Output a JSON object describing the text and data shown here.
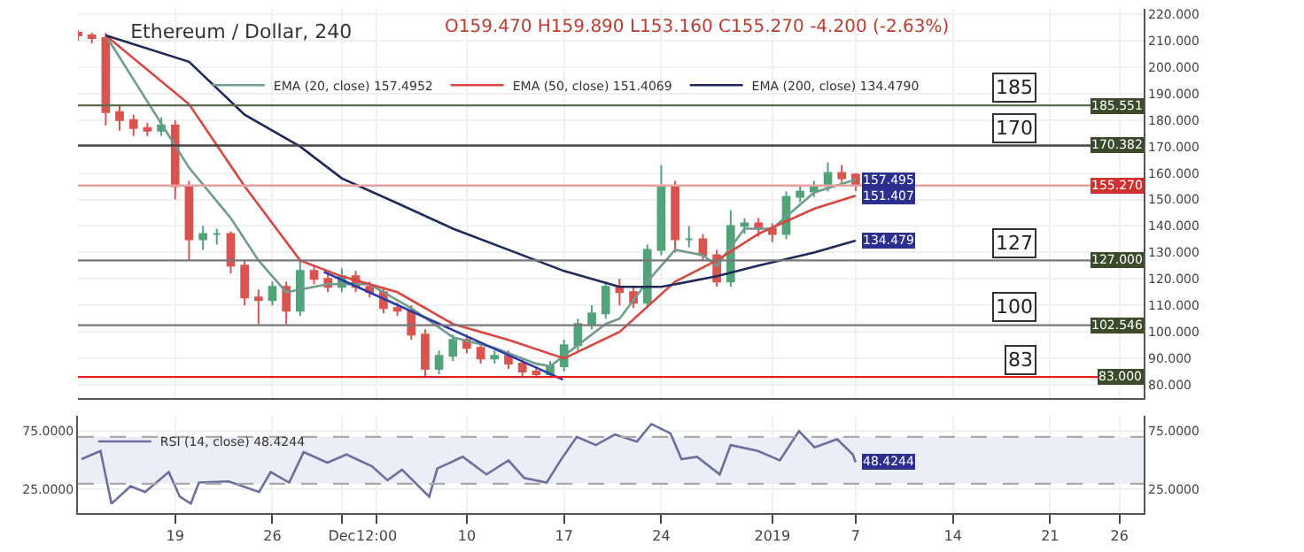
{
  "chart_data": [
    {
      "type": "candlestick",
      "title": "Ethereum / Dollar, 240",
      "subtitle": "O159.470 H159.890 L153.160 C155.270 -4.200 (-2.63%)",
      "x": [
        "2018-11-12",
        "2018-11-13",
        "2018-11-14",
        "2018-11-15",
        "2018-11-16",
        "2018-11-17",
        "2018-11-18",
        "2018-11-19",
        "2018-11-20",
        "2018-11-21",
        "2018-11-22",
        "2018-11-23",
        "2018-11-24",
        "2018-11-25",
        "2018-11-26",
        "2018-11-27",
        "2018-11-28",
        "2018-11-29",
        "2018-11-30",
        "2018-12-01",
        "2018-12-02",
        "2018-12-03",
        "2018-12-04",
        "2018-12-05",
        "2018-12-06",
        "2018-12-07",
        "2018-12-08",
        "2018-12-09",
        "2018-12-10",
        "2018-12-11",
        "2018-12-12",
        "2018-12-13",
        "2018-12-14",
        "2018-12-15",
        "2018-12-16",
        "2018-12-17",
        "2018-12-18",
        "2018-12-19",
        "2018-12-20",
        "2018-12-21",
        "2018-12-22",
        "2018-12-23",
        "2018-12-24",
        "2018-12-25",
        "2018-12-26",
        "2018-12-27",
        "2018-12-28",
        "2018-12-29",
        "2018-12-30",
        "2018-12-31",
        "2019-01-01",
        "2019-01-02",
        "2019-01-03",
        "2019-01-04",
        "2019-01-05",
        "2019-01-06",
        "2019-01-07"
      ],
      "ohlc": [
        [
          213,
          214,
          210,
          212
        ],
        [
          212,
          213,
          209,
          211
        ],
        [
          211,
          213,
          178,
          183
        ],
        [
          183,
          186,
          176,
          180
        ],
        [
          180,
          182,
          174,
          177
        ],
        [
          177,
          179,
          174,
          176
        ],
        [
          176,
          181,
          174,
          178
        ],
        [
          178,
          180,
          150,
          155
        ],
        [
          155,
          157,
          127,
          135
        ],
        [
          135,
          140,
          131,
          137
        ],
        [
          137,
          139,
          133,
          137
        ],
        [
          137,
          138,
          122,
          125
        ],
        [
          125,
          127,
          110,
          113
        ],
        [
          113,
          116,
          103,
          112
        ],
        [
          112,
          119,
          110,
          117
        ],
        [
          117,
          119,
          103,
          108
        ],
        [
          108,
          127,
          106,
          123
        ],
        [
          123,
          125,
          118,
          120
        ],
        [
          120,
          122,
          115,
          117
        ],
        [
          117,
          124,
          115,
          121
        ],
        [
          121,
          123,
          115,
          117
        ],
        [
          117,
          119,
          113,
          115
        ],
        [
          115,
          117,
          107,
          109
        ],
        [
          109,
          111,
          106,
          108
        ],
        [
          108,
          110,
          97,
          99
        ],
        [
          99,
          101,
          83,
          86
        ],
        [
          86,
          93,
          84,
          91
        ],
        [
          91,
          99,
          89,
          97
        ],
        [
          97,
          99,
          92,
          94
        ],
        [
          94,
          96,
          88,
          90
        ],
        [
          90,
          93,
          88,
          91
        ],
        [
          91,
          93,
          86,
          88
        ],
        [
          88,
          90,
          83,
          85
        ],
        [
          85,
          87,
          83,
          84
        ],
        [
          84,
          89,
          83,
          87
        ],
        [
          87,
          97,
          85,
          95
        ],
        [
          95,
          105,
          93,
          103
        ],
        [
          103,
          110,
          101,
          107
        ],
        [
          107,
          119,
          105,
          117
        ],
        [
          117,
          120,
          110,
          115
        ],
        [
          115,
          117,
          109,
          111
        ],
        [
          111,
          133,
          109,
          131
        ],
        [
          131,
          163,
          129,
          155
        ],
        [
          155,
          157,
          130,
          135
        ],
        [
          135,
          140,
          132,
          135
        ],
        [
          135,
          137,
          127,
          129
        ],
        [
          129,
          131,
          117,
          119
        ],
        [
          119,
          146,
          117,
          140
        ],
        [
          140,
          143,
          137,
          141
        ],
        [
          141,
          143,
          136,
          139
        ],
        [
          139,
          141,
          134,
          137
        ],
        [
          137,
          153,
          135,
          151
        ],
        [
          151,
          155,
          149,
          153
        ],
        [
          153,
          157,
          151,
          155
        ],
        [
          155,
          164,
          153,
          160
        ],
        [
          160,
          163,
          156,
          158
        ],
        [
          159.47,
          159.89,
          153.16,
          155.27
        ]
      ],
      "colors": [
        "#d9534f",
        "#d9534f",
        "#d9534f",
        "#d9534f",
        "#d9534f",
        "#d9534f",
        "#53a37a",
        "#d9534f",
        "#d9534f",
        "#53a37a",
        "#53a37a",
        "#d9534f",
        "#d9534f",
        "#d9534f",
        "#53a37a",
        "#d9534f",
        "#53a37a",
        "#d9534f",
        "#d9534f",
        "#53a37a",
        "#d9534f",
        "#d9534f",
        "#d9534f",
        "#d9534f",
        "#d9534f",
        "#d9534f",
        "#53a37a",
        "#53a37a",
        "#d9534f",
        "#d9534f",
        "#53a37a",
        "#d9534f",
        "#d9534f",
        "#d9534f",
        "#53a37a",
        "#53a37a",
        "#53a37a",
        "#53a37a",
        "#53a37a",
        "#d9534f",
        "#d9534f",
        "#53a37a",
        "#53a37a",
        "#d9534f",
        "#53a37a",
        "#d9534f",
        "#d9534f",
        "#53a37a",
        "#53a37a",
        "#d9534f",
        "#d9534f",
        "#53a37a",
        "#53a37a",
        "#53a37a",
        "#53a37a",
        "#d9534f",
        "#d9534f"
      ],
      "series": [
        {
          "type": "line",
          "name": "EMA (20, close) 157.4952",
          "color": "#6f9c8c",
          "x": [
            "2018-11-14",
            "2018-11-20",
            "2018-11-23",
            "2018-11-25",
            "2018-11-27",
            "2018-11-30",
            "2018-12-03",
            "2018-12-06",
            "2018-12-09",
            "2018-12-12",
            "2018-12-15",
            "2018-12-16",
            "2018-12-20",
            "2018-12-21",
            "2018-12-23",
            "2018-12-25",
            "2018-12-27",
            "2018-12-28",
            "2018-12-30",
            "2019-01-01",
            "2019-01-04",
            "2019-01-07"
          ],
          "values": [
            212,
            162,
            143,
            127,
            115,
            118,
            118,
            109,
            98,
            94,
            88,
            87,
            103,
            105,
            119,
            131,
            129,
            125,
            139,
            139,
            152.6,
            157.495
          ]
        },
        {
          "type": "line",
          "name": "EMA (50, close) 151.4069",
          "color": "#d9453f",
          "x": [
            "2018-11-14",
            "2018-11-20",
            "2018-11-24",
            "2018-11-28",
            "2018-12-01",
            "2018-12-05",
            "2018-12-09",
            "2018-12-13",
            "2018-12-17",
            "2018-12-21",
            "2018-12-25",
            "2018-12-28",
            "2018-12-31",
            "2019-01-04",
            "2019-01-07"
          ],
          "values": [
            212,
            186,
            155,
            127,
            121,
            115,
            103,
            97,
            90,
            100,
            119,
            127,
            137,
            146.5,
            151.407
          ]
        },
        {
          "type": "line",
          "name": "EMA (200, close) 134.4790",
          "color": "#1f2a5a",
          "x": [
            "2018-11-14",
            "2018-11-20",
            "2018-11-24",
            "2018-11-28",
            "2018-12-01",
            "2018-12-05",
            "2018-12-09",
            "2018-12-13",
            "2018-12-17",
            "2018-12-21",
            "2018-12-24",
            "2018-12-28",
            "2018-12-31",
            "2019-01-04",
            "2019-01-07"
          ],
          "values": [
            212,
            202,
            182,
            170,
            158,
            148.6,
            139,
            131,
            123,
            117,
            117,
            121,
            125,
            130,
            134.479
          ]
        },
        {
          "type": "line",
          "color": "#2a3aa8",
          "x": [
            "2018-11-29T17:00",
            "2018-12-16T22:00"
          ],
          "values": [
            122.7,
            82
          ]
        }
      ],
      "ref_lines": [
        {
          "axis": "y",
          "value": 185.551,
          "label": "185.551",
          "color": "#5a6b4a"
        },
        {
          "axis": "y",
          "value": 170.382,
          "label": "170.382",
          "color": "#444444"
        },
        {
          "axis": "y",
          "value": 127,
          "label": "127.000",
          "color": "#777777"
        },
        {
          "axis": "y",
          "value": 102.546,
          "label": "102.546",
          "color": "#777777"
        },
        {
          "axis": "y",
          "value": 83,
          "label": "83.000",
          "color": "#e02020"
        },
        {
          "axis": "y",
          "value": 155.27,
          "label": "155.270",
          "color": "#e8a0a0"
        }
      ],
      "annotations": [
        "185",
        "170",
        "127",
        "100",
        "83",
        {
          "text": "157.495",
          "x": "2019-01-07",
          "y": 157.495
        },
        {
          "text": "151.407",
          "x": "2019-01-07",
          "y": 151.407
        },
        {
          "text": "134.479",
          "x": "2019-01-07",
          "y": 134.479
        }
      ],
      "xlim": [
        "2018-11-12",
        "2019-01-27T18:00"
      ],
      "xticks": [
        {
          "value": "2018-11-19",
          "label": null
        },
        {
          "value": "2018-11-26",
          "label": null
        },
        {
          "value": "2018-12-01",
          "label": null
        },
        {
          "value": "2018-12-03T12:00",
          "label": null
        },
        {
          "value": "2018-12-10",
          "label": null
        },
        {
          "value": "2018-12-17",
          "label": null
        },
        {
          "value": "2018-12-24",
          "label": null
        },
        {
          "value": "2019-01-01",
          "label": null
        },
        {
          "value": "2019-01-07",
          "label": null
        },
        {
          "value": "2019-01-14",
          "label": null
        },
        {
          "value": "2019-01-21",
          "label": null
        },
        {
          "value": "2019-01-26",
          "label": null
        }
      ],
      "ylim": [
        75,
        222
      ],
      "yticks": [
        {
          "value": 80,
          "label": "80.000"
        },
        {
          "value": 90,
          "label": "90.000"
        },
        {
          "value": 100,
          "label": "100.000"
        },
        {
          "value": 110,
          "label": "110.000"
        },
        {
          "value": 120,
          "label": "120.000"
        },
        {
          "value": 130,
          "label": "130.000"
        },
        {
          "value": 140,
          "label": "140.000"
        },
        {
          "value": 150,
          "label": "150.000"
        },
        {
          "value": 160,
          "label": "160.000"
        },
        {
          "value": 170,
          "label": "170.000"
        },
        {
          "value": 180,
          "label": "180.000"
        },
        {
          "value": 190,
          "label": "190.000"
        },
        {
          "value": 200,
          "label": "200.000"
        },
        {
          "value": 210,
          "label": "210.000"
        },
        {
          "value": 220,
          "label": "220.000"
        }
      ],
      "grid": true,
      "legend": "top",
      "tick_labels": "y"
    },
    {
      "type": "line",
      "series": [
        {
          "name": "RSI (14, close) 48.4244",
          "color": "#6b6f9e",
          "x": [
            "2018-11-12T06:00",
            "2018-11-13T15:00",
            "2018-11-14T04:00",
            "2018-11-14T10:00",
            "2018-11-15T19:00",
            "2018-11-16T20:00",
            "2018-11-18T13:00",
            "2018-11-19T08:00",
            "2018-11-20T03:00",
            "2018-11-20T17:00",
            "2018-11-22T21:00",
            "2018-11-25T01:00",
            "2018-11-25T21:00",
            "2018-11-27T05:00",
            "2018-11-28T06:00",
            "2018-11-29T23:00",
            "2018-12-01T08:00",
            "2018-12-03T04:00",
            "2018-12-04T07:00",
            "2018-12-05T08:00",
            "2018-12-07T07:00",
            "2018-12-07T21:00",
            "2018-12-09T17:00",
            "2018-12-11T10:00",
            "2018-12-13T00:00",
            "2018-12-14T03:00",
            "2018-12-15T18:00",
            "2018-12-16T18:00",
            "2018-12-17T22:00",
            "2018-12-19T07:00",
            "2018-12-20T16:00",
            "2018-12-22T06:00",
            "2018-12-23T07:00",
            "2018-12-24T16:00",
            "2018-12-25T11:00",
            "2018-12-26T14:00",
            "2018-12-28T05:00",
            "2018-12-29T00:00",
            "2018-12-30T23:00",
            "2019-01-01T13:00",
            "2019-01-02T22:00",
            "2019-01-04T01:00",
            "2019-01-05T16:00",
            "2019-01-06T19:00",
            "2019-01-07"
          ],
          "values": [
            51,
            58,
            27,
            13,
            28,
            23,
            40,
            19,
            13,
            31,
            32,
            23,
            40,
            31,
            57,
            48,
            55,
            45,
            33,
            42,
            19,
            43,
            53,
            38,
            50,
            35,
            31,
            50,
            70,
            63,
            72,
            66,
            81,
            73,
            51,
            53,
            38,
            63,
            58,
            50,
            75,
            61,
            68,
            55,
            48.4244
          ]
        }
      ],
      "bands": [
        {
          "axis": "y",
          "from": 30,
          "to": 70,
          "color": "#eceef7"
        }
      ],
      "ref_lines": [
        {
          "axis": "y",
          "value": 30,
          "color": "#aaaaaa",
          "line_style": "dashed"
        },
        {
          "axis": "y",
          "value": 70,
          "color": "#aaaaaa",
          "line_style": "dashed"
        }
      ],
      "annotations": [
        {
          "text": "48.4244",
          "x": "2019-01-07",
          "y": 48.4244
        }
      ],
      "xlim": [
        "2018-11-12",
        "2019-01-27T18:00"
      ],
      "xticks": [
        {
          "value": "2018-11-19",
          "label": "19"
        },
        {
          "value": "2018-11-26",
          "label": "26"
        },
        {
          "value": "2018-12-01",
          "label": "Dec"
        },
        {
          "value": "2018-12-03T12:00",
          "label": "12:00"
        },
        {
          "value": "2018-12-10",
          "label": "10"
        },
        {
          "value": "2018-12-17",
          "label": "17"
        },
        {
          "value": "2018-12-24",
          "label": "24"
        },
        {
          "value": "2019-01-01",
          "label": "2019"
        },
        {
          "value": "2019-01-07",
          "label": "7"
        },
        {
          "value": "2019-01-14",
          "label": "14"
        },
        {
          "value": "2019-01-21",
          "label": "21"
        },
        {
          "value": "2019-01-26",
          "label": "26"
        }
      ],
      "ylim": [
        5,
        88
      ],
      "yticks": [
        {
          "value": 25,
          "label": "25.0000"
        },
        {
          "value": 75,
          "label": "75.0000"
        }
      ],
      "y2lim": [
        5,
        88
      ],
      "y2ticks": [
        {
          "value": 25,
          "label": "25.0000"
        },
        {
          "value": 75,
          "label": "75.0000"
        }
      ],
      "grid": true,
      "legend": "top left"
    }
  ]
}
